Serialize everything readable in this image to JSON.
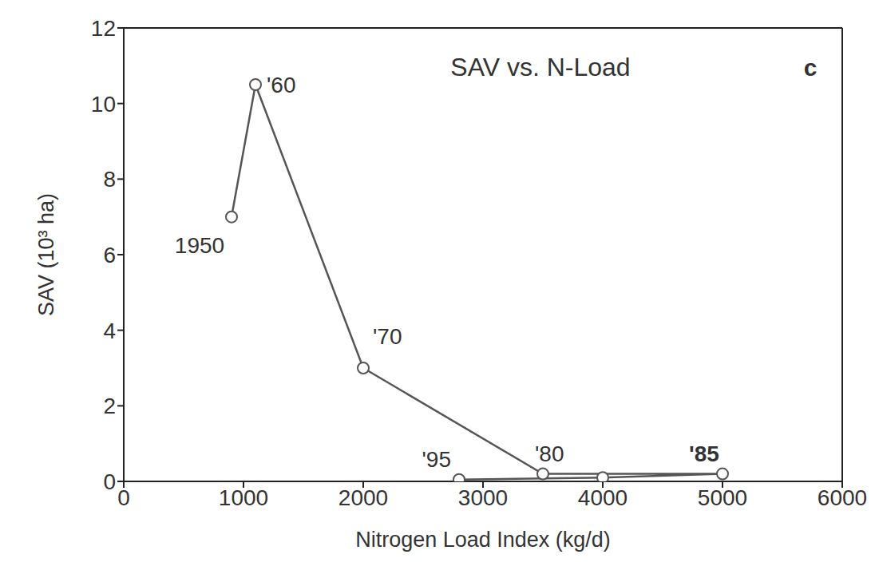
{
  "chart_data": {
    "type": "line",
    "title": "SAV vs. N-Load",
    "panel_label": "c",
    "x_label": "Nitrogen Load Index (kg/d)",
    "y_label": "SAV (10³ ha)",
    "x": [
      900,
      1100,
      2000,
      3500,
      5000,
      4000,
      2800
    ],
    "values": [
      7.0,
      10.5,
      3.0,
      0.2,
      0.2,
      0.1,
      0.05
    ],
    "point_labels": [
      "1950",
      "'60",
      "'70",
      "'80",
      "'85",
      null,
      "'95"
    ],
    "color": "#555555",
    "marker": "circle",
    "xlim": [
      0,
      6000
    ],
    "xticks": [
      0,
      1000,
      2000,
      3000,
      4000,
      5000,
      6000
    ],
    "ylim": [
      0,
      12
    ],
    "yticks": [
      0,
      2,
      4,
      6,
      8,
      10,
      12
    ],
    "grid": false
  }
}
